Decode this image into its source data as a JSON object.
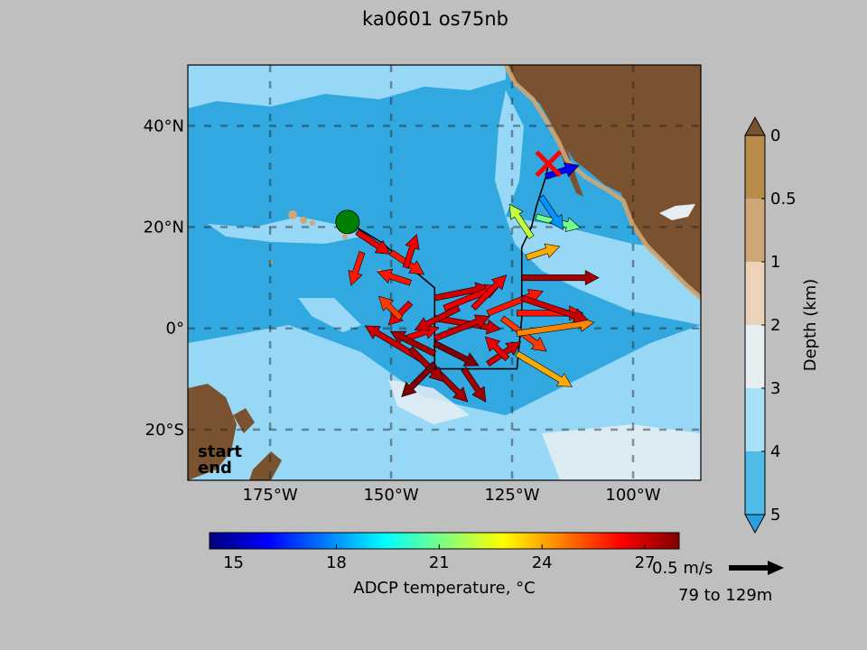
{
  "chart_data": {
    "type": "scatter",
    "title": "ka0601 os75nb",
    "map": {
      "lon_range": [
        -192,
        -86
      ],
      "lat_range": [
        -30,
        52
      ],
      "x_ticks": [
        -175,
        -150,
        -125,
        -100
      ],
      "x_tick_labels": [
        "175°W",
        "150°W",
        "125°W",
        "100°W"
      ],
      "y_ticks": [
        40,
        20,
        0,
        -20
      ],
      "y_tick_labels": [
        "40°N",
        "20°N",
        "0°",
        "20°S"
      ],
      "grid": "dashed",
      "start_label": "start",
      "end_label": "end",
      "start_color": "#008000",
      "end_color": "#ff0000",
      "land_color": "#7a5230"
    },
    "track": {
      "start_point": {
        "lon": -159,
        "lat": 21
      },
      "end_point": {
        "lon": -117.5,
        "lat": 32.5
      },
      "lon": [
        -159,
        -152,
        -146,
        -141,
        -141,
        -141,
        -132,
        -124,
        -123,
        -123,
        -123,
        -121,
        -120,
        -119,
        -118,
        -117.5
      ],
      "lat": [
        21,
        17,
        12,
        8,
        -2,
        -8,
        -8,
        -8,
        2,
        10,
        16,
        20,
        24,
        27,
        30,
        32.5
      ]
    },
    "vectors": {
      "depth_range": "79 to 129m",
      "lon": [
        -157,
        -156,
        -150,
        -147,
        -146,
        -146,
        -148,
        -147,
        -141,
        -141,
        -141,
        -141,
        -141,
        -144,
        -146,
        -139,
        -136,
        -133,
        -130,
        -127,
        -124,
        -124,
        -124,
        -123,
        -123,
        -122,
        -121,
        -120,
        -119,
        -118,
        -141,
        -141,
        -135,
        -130,
        -126
      ],
      "lat": [
        19,
        15,
        15,
        12,
        9,
        5,
        2,
        -2,
        6,
        2,
        -2,
        -5,
        -8,
        -6,
        -4,
        4,
        4,
        4,
        3,
        2,
        3,
        -1,
        -5,
        6,
        10,
        14,
        18,
        22,
        26,
        30,
        -3,
        -7,
        -8,
        -7,
        -6
      ],
      "u": [
        0.3,
        -0.1,
        0.3,
        0.1,
        -0.3,
        -0.2,
        -0.2,
        0.3,
        0.5,
        0.6,
        0.5,
        -0.4,
        0.3,
        -0.5,
        0.3,
        0.5,
        -0.4,
        0.3,
        0.5,
        0.4,
        0.6,
        0.7,
        0.5,
        0.6,
        0.7,
        0.3,
        -0.2,
        0.4,
        0.2,
        0.3,
        0.4,
        -0.3,
        0.2,
        0.3,
        -0.2
      ],
      "v": [
        -0.2,
        -0.3,
        -0.2,
        0.3,
        0.1,
        -0.2,
        0.2,
        0.1,
        0.1,
        -0.1,
        0.2,
        0.2,
        -0.3,
        0.3,
        -0.3,
        0.2,
        -0.2,
        0.3,
        0.2,
        -0.3,
        0.0,
        0.1,
        -0.3,
        -0.2,
        0.0,
        0.1,
        0.3,
        -0.1,
        -0.3,
        0.1,
        -0.2,
        -0.3,
        -0.3,
        0.2,
        0.2
      ],
      "temperature_C": [
        26.5,
        26,
        26,
        26.5,
        26,
        26.5,
        25.5,
        26.5,
        27,
        27,
        27,
        27.5,
        27.5,
        27,
        27.5,
        26.5,
        27,
        26.5,
        26,
        25.5,
        26,
        24.5,
        24,
        27,
        27.5,
        24,
        22,
        21,
        18,
        16,
        28,
        28,
        27.5,
        27,
        26.5
      ]
    },
    "temperature_colorbar": {
      "label": "ADCP temperature, °C",
      "range": [
        14.3,
        28
      ],
      "ticks": [
        "15",
        "18",
        "21",
        "24",
        "27"
      ],
      "tick_values": [
        15,
        18,
        21,
        24,
        27
      ],
      "colormap": [
        "#00007f",
        "#0000ff",
        "#007fff",
        "#00ffff",
        "#7fff7f",
        "#ffff00",
        "#ff7f00",
        "#ff0000",
        "#7f0000"
      ]
    },
    "depth_colorbar": {
      "label": "Depth (km)",
      "ticks": [
        "0",
        "0.5",
        "1",
        "2",
        "3",
        "4",
        "5"
      ],
      "tick_values": [
        0,
        0.5,
        1,
        2,
        3,
        4,
        5
      ],
      "band_colors": [
        "#b98c4a",
        "#cfa677",
        "#ecd2b8",
        "#e6eef2",
        "#a8e0f8",
        "#4fbce8"
      ],
      "over_color": "#7a5230",
      "under_color": "#2aa0e0"
    },
    "reference_vector": {
      "label": "0.5 m/s",
      "depth_label": "79 to 129m",
      "speed": 0.5
    }
  }
}
